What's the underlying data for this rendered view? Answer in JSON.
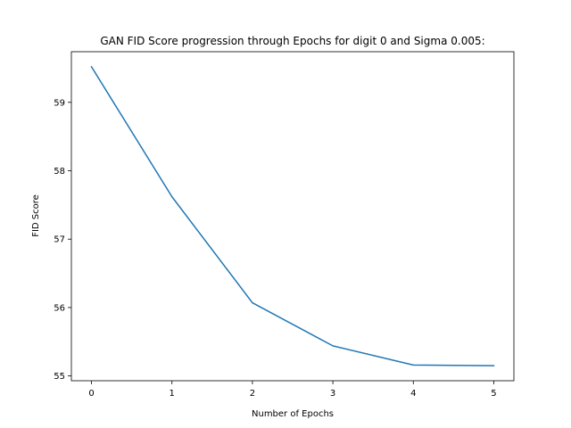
{
  "chart_data": {
    "type": "line",
    "title": "GAN FID Score progression through Epochs for digit 0 and Sigma 0.005:",
    "xlabel": "Number of Epochs",
    "ylabel": "FID Score",
    "x": [
      0,
      1,
      2,
      3,
      4,
      5
    ],
    "series": [
      {
        "values": [
          59.52,
          57.62,
          56.07,
          55.44,
          55.16,
          55.15
        ],
        "color": "#1f77b4"
      }
    ],
    "xticks": [
      "0",
      "1",
      "2",
      "3",
      "4",
      "5"
    ],
    "yticks": [
      "55",
      "56",
      "57",
      "58",
      "59"
    ],
    "xlim": [
      -0.25,
      5.25
    ],
    "ylim": [
      54.93,
      59.74
    ],
    "grid": false,
    "legend": "none"
  }
}
